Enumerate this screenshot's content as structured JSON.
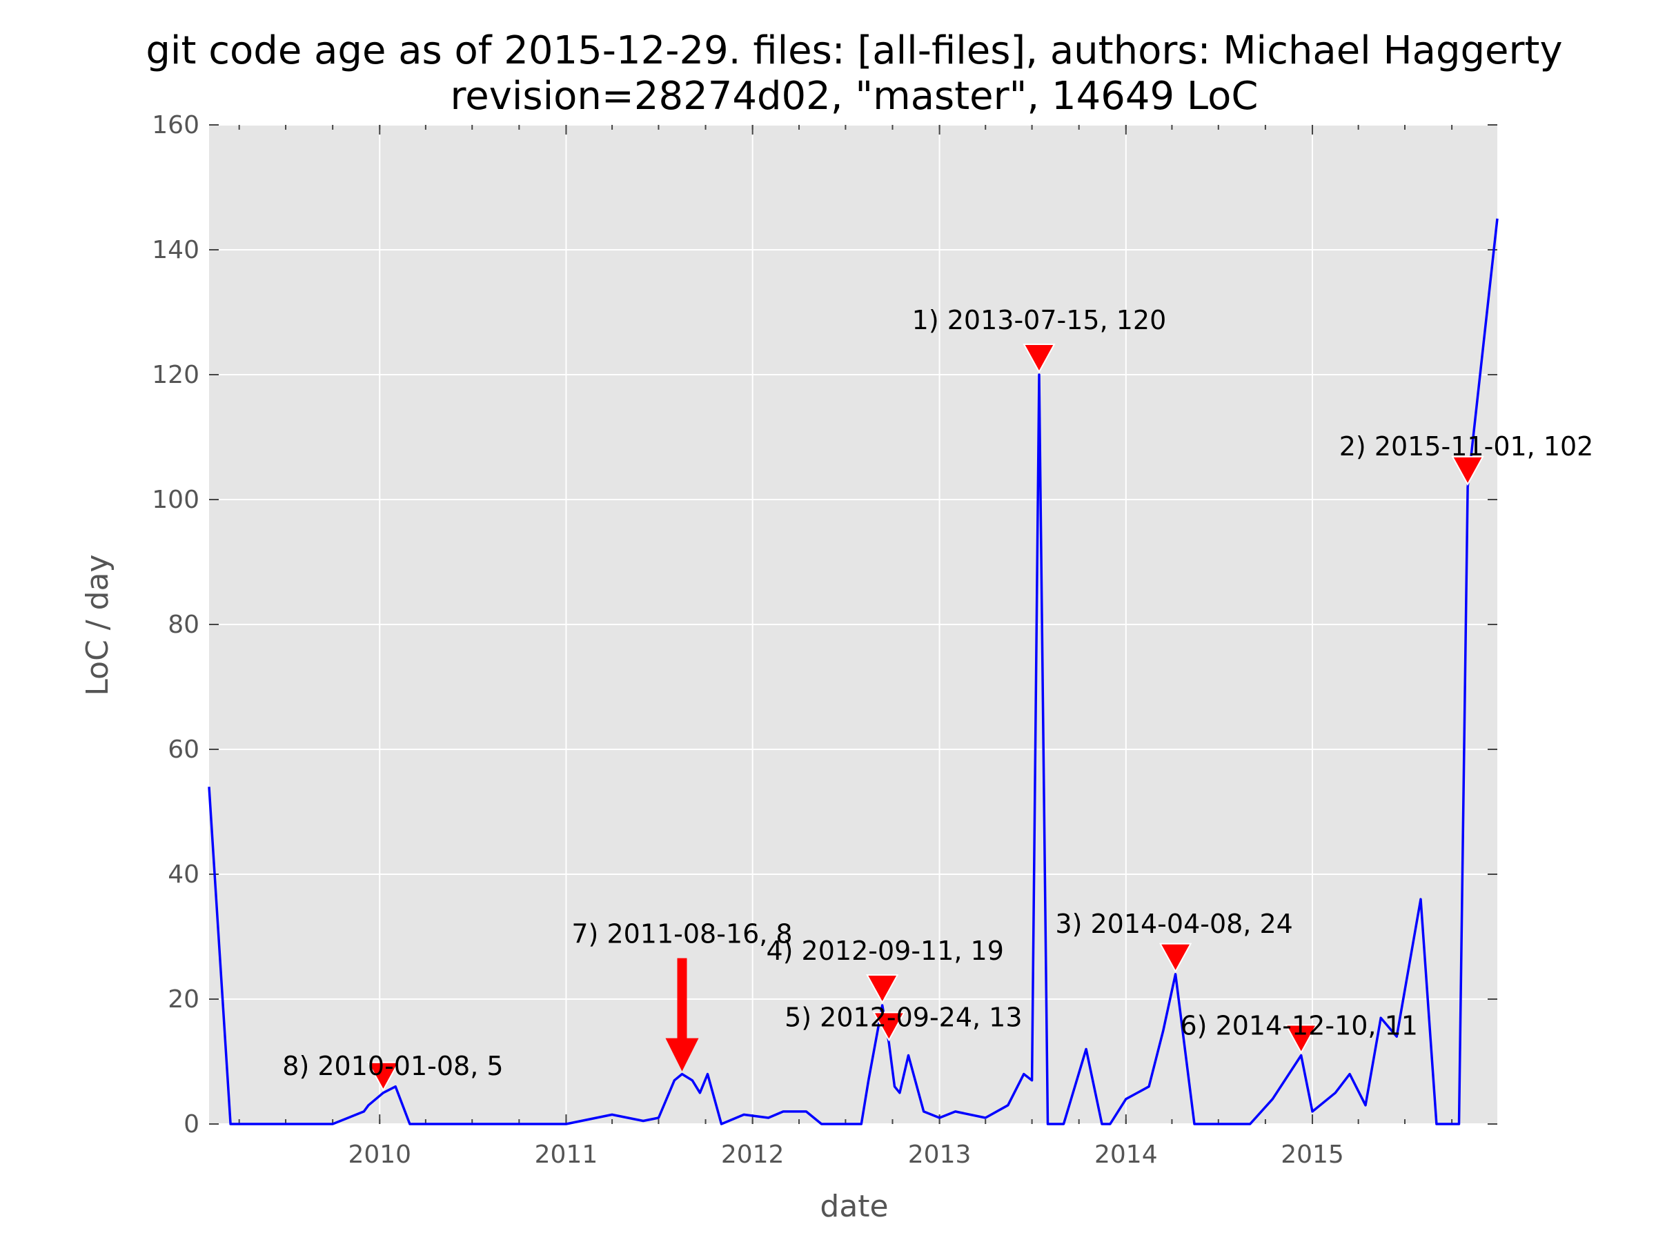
{
  "chart_data": {
    "type": "line",
    "title": "git code age as of 2015-12-29. files: [all-files], authors: Michael Haggerty",
    "subtitle": "revision=28274d02, \"master\", 14649 LoC",
    "xlabel": "date",
    "ylabel": "LoC / day",
    "xlim": [
      "2009-02-01",
      "2015-12-29"
    ],
    "ylim": [
      0,
      160
    ],
    "x_ticks": [
      "2010",
      "2011",
      "2012",
      "2013",
      "2014",
      "2015"
    ],
    "y_ticks": [
      "0",
      "20",
      "40",
      "60",
      "80",
      "100",
      "120",
      "140",
      "160"
    ],
    "grid": true,
    "background": "#e5e5e5",
    "line_color": "#0000ff",
    "marker_color": "#ff0000",
    "series": [
      {
        "x": [
          "2009-02-01",
          "2009-03-15",
          "2009-07-01",
          "2009-10-01",
          "2009-12-01",
          "2009-12-10",
          "2010-01-08",
          "2010-02-01",
          "2010-03-01",
          "2011-01-01",
          "2011-04-01",
          "2011-06-01",
          "2011-07-01",
          "2011-08-01",
          "2011-08-16",
          "2011-09-05",
          "2011-09-20",
          "2011-10-05",
          "2011-11-01",
          "2011-12-15",
          "2012-02-01",
          "2012-03-01",
          "2012-04-15",
          "2012-05-15",
          "2012-08-01",
          "2012-08-15",
          "2012-09-11",
          "2012-09-24",
          "2012-10-05",
          "2012-10-15",
          "2012-11-01",
          "2012-12-01",
          "2013-01-01",
          "2013-02-01",
          "2013-04-01",
          "2013-05-15",
          "2013-06-15",
          "2013-07-01",
          "2013-07-15",
          "2013-08-01",
          "2013-09-01",
          "2013-10-15",
          "2013-11-15",
          "2013-12-01",
          "2014-01-01",
          "2014-02-15",
          "2014-03-15",
          "2014-04-08",
          "2014-05-15",
          "2014-07-01",
          "2014-09-01",
          "2014-10-15",
          "2014-12-10",
          "2015-01-01",
          "2015-02-15",
          "2015-03-15",
          "2015-04-15",
          "2015-05-15",
          "2015-06-15",
          "2015-08-01",
          "2015-09-01",
          "2015-09-15",
          "2015-10-15",
          "2015-11-01",
          "2015-12-29"
        ],
        "y": [
          54,
          0,
          0,
          0,
          2,
          3,
          5,
          6,
          0,
          0,
          1.5,
          0.5,
          1,
          7,
          8,
          7,
          5,
          8,
          0,
          1.5,
          1,
          2,
          2,
          0,
          0,
          7,
          19,
          13,
          6,
          5,
          11,
          2,
          1,
          2,
          1,
          3,
          8,
          7,
          120,
          0,
          0,
          12,
          0,
          0,
          4,
          6,
          15,
          24,
          0,
          0,
          0,
          4,
          11,
          2,
          5,
          8,
          3,
          17,
          14,
          36,
          0,
          0,
          0,
          102,
          145
        ]
      }
    ],
    "annotations": [
      {
        "label": "1) 2013-07-15, 120",
        "date": "2013-07-15",
        "value": 120
      },
      {
        "label": "2) 2015-11-01, 102",
        "date": "2015-11-01",
        "value": 102
      },
      {
        "label": "3) 2014-04-08, 24",
        "date": "2014-04-08",
        "value": 24
      },
      {
        "label": "4) 2012-09-11, 19",
        "date": "2012-09-11",
        "value": 19
      },
      {
        "label": "5) 2012-09-24, 13",
        "date": "2012-09-24",
        "value": 13
      },
      {
        "label": "6) 2014-12-10, 11",
        "date": "2014-12-10",
        "value": 11
      },
      {
        "label": "7) 2011-08-16, 8",
        "date": "2011-08-16",
        "value": 8
      },
      {
        "label": "8) 2010-01-08, 5",
        "date": "2010-01-08",
        "value": 5
      }
    ]
  }
}
